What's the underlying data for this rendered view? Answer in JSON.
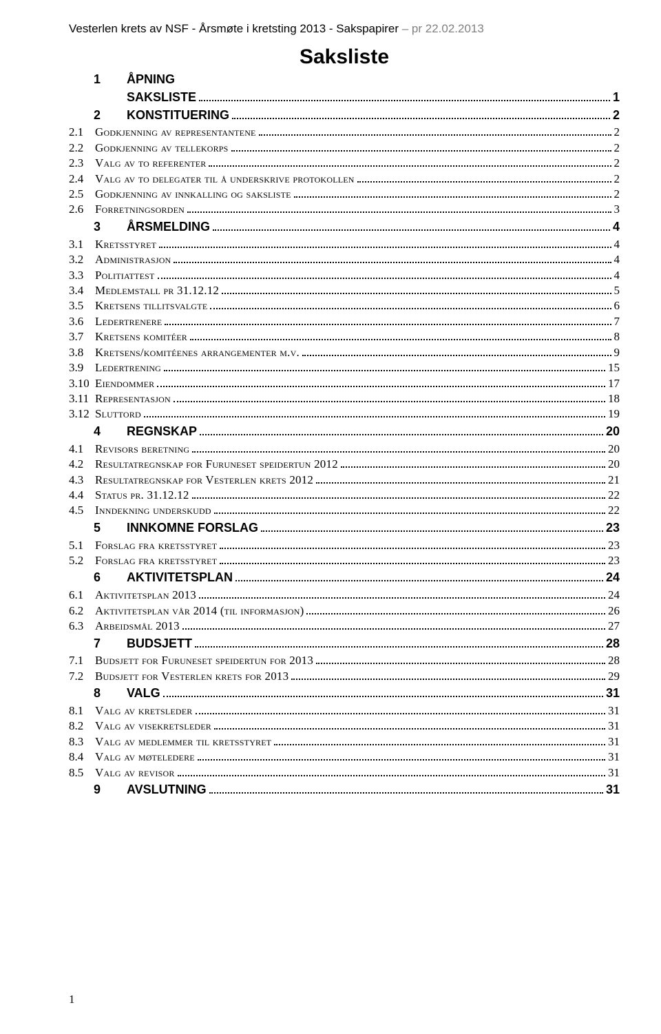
{
  "header": {
    "left": "Vesterlen krets av NSF - Årsmøte i kretsting 2013 - Sakspapirer ",
    "right": "– pr 22.02.2013"
  },
  "title": "Saksliste",
  "footer_page": "1",
  "toc": [
    {
      "lvl": 1,
      "num": "1",
      "label": "ÅPNING",
      "page": "",
      "noline": true
    },
    {
      "lvl": 1,
      "num": "",
      "label": "SAKSLISTE",
      "page": "1",
      "noline": false
    },
    {
      "lvl": 1,
      "num": "2",
      "label": "KONSTITUERING",
      "page": "2"
    },
    {
      "lvl": 2,
      "num": "2.1",
      "label": "Godkjenning av representantene",
      "page": "2"
    },
    {
      "lvl": 2,
      "num": "2.2",
      "label": "Godkjenning av tellekorps",
      "page": "2"
    },
    {
      "lvl": 2,
      "num": "2.3",
      "label": "Valg av to referenter",
      "page": "2"
    },
    {
      "lvl": 2,
      "num": "2.4",
      "label": "Valg av to delegater til å underskrive protokollen",
      "page": "2"
    },
    {
      "lvl": 2,
      "num": "2.5",
      "label": "Godkjenning av innkalling og saksliste",
      "page": "2"
    },
    {
      "lvl": 2,
      "num": "2.6",
      "label": "Forretningsorden",
      "page": "3"
    },
    {
      "lvl": 1,
      "num": "3",
      "label": "ÅRSMELDING",
      "page": "4"
    },
    {
      "lvl": 2,
      "num": "3.1",
      "label": "Kretsstyret",
      "page": "4"
    },
    {
      "lvl": 2,
      "num": "3.2",
      "label": "Administrasjon",
      "page": "4"
    },
    {
      "lvl": 2,
      "num": "3.3",
      "label": "Politiattest",
      "page": "4"
    },
    {
      "lvl": 2,
      "num": "3.4",
      "label": "Medlemstall pr 31.12.12",
      "page": "5"
    },
    {
      "lvl": 2,
      "num": "3.5",
      "label": "Kretsens tillitsvalgte",
      "page": "6"
    },
    {
      "lvl": 2,
      "num": "3.6",
      "label": "Ledertrenere",
      "page": "7"
    },
    {
      "lvl": 2,
      "num": "3.7",
      "label": "Kretsens komitéer",
      "page": "8"
    },
    {
      "lvl": 2,
      "num": "3.8",
      "label": "Kretsens/komitéenes arrangementer m.v.",
      "page": "9"
    },
    {
      "lvl": 2,
      "num": "3.9",
      "label": "Ledertrening",
      "page": "15"
    },
    {
      "lvl": 2,
      "num": "3.10",
      "label": "Eiendommer",
      "page": "17"
    },
    {
      "lvl": 2,
      "num": "3.11",
      "label": "Representasjon",
      "page": "18"
    },
    {
      "lvl": 2,
      "num": "3.12",
      "label": "Sluttord",
      "page": "19"
    },
    {
      "lvl": 1,
      "num": "4",
      "label": "REGNSKAP",
      "page": "20"
    },
    {
      "lvl": 2,
      "num": "4.1",
      "label": "Revisors beretning",
      "page": "20"
    },
    {
      "lvl": 2,
      "num": "4.2",
      "label": "Resultatregnskap for Furuneset speidertun 2012",
      "page": "20"
    },
    {
      "lvl": 2,
      "num": "4.3",
      "label": "Resultatregnskap for Vesterlen krets 2012",
      "page": "21"
    },
    {
      "lvl": 2,
      "num": "4.4",
      "label": "Status pr. 31.12.12",
      "page": "22"
    },
    {
      "lvl": 2,
      "num": "4.5",
      "label": "Inndekning underskudd",
      "page": "22"
    },
    {
      "lvl": 1,
      "num": "5",
      "label": "INNKOMNE FORSLAG",
      "page": "23"
    },
    {
      "lvl": 2,
      "num": "5.1",
      "label": "Forslag fra kretsstyret",
      "page": "23"
    },
    {
      "lvl": 2,
      "num": "5.2",
      "label": "Forslag fra kretsstyret",
      "page": "23"
    },
    {
      "lvl": 1,
      "num": "6",
      "label": "AKTIVITETSPLAN",
      "page": "24"
    },
    {
      "lvl": 2,
      "num": "6.1",
      "label": "Aktivitetsplan 2013",
      "page": "24"
    },
    {
      "lvl": 2,
      "num": "6.2",
      "label": "Aktivitetsplan vår 2014 (til informasjon)",
      "page": "26"
    },
    {
      "lvl": 2,
      "num": "6.3",
      "label": "Arbeidsmål 2013",
      "page": "27"
    },
    {
      "lvl": 1,
      "num": "7",
      "label": "BUDSJETT",
      "page": "28"
    },
    {
      "lvl": 2,
      "num": "7.1",
      "label": "Budsjett for Furuneset speidertun for 2013",
      "page": "28"
    },
    {
      "lvl": 2,
      "num": "7.2",
      "label": "Budsjett for Vesterlen krets for 2013",
      "page": "29"
    },
    {
      "lvl": 1,
      "num": "8",
      "label": "VALG",
      "page": "31"
    },
    {
      "lvl": 2,
      "num": "8.1",
      "label": "Valg av kretsleder",
      "page": "31"
    },
    {
      "lvl": 2,
      "num": "8.2",
      "label": "Valg av visekretsleder",
      "page": "31"
    },
    {
      "lvl": 2,
      "num": "8.3",
      "label": "Valg av medlemmer til kretsstyret",
      "page": "31"
    },
    {
      "lvl": 2,
      "num": "8.4",
      "label": "Valg av møteledere",
      "page": "31"
    },
    {
      "lvl": 2,
      "num": "8.5",
      "label": "Valg av revisor",
      "page": "31"
    },
    {
      "lvl": 1,
      "num": "9",
      "label": "AVSLUTNING",
      "page": "31"
    }
  ]
}
